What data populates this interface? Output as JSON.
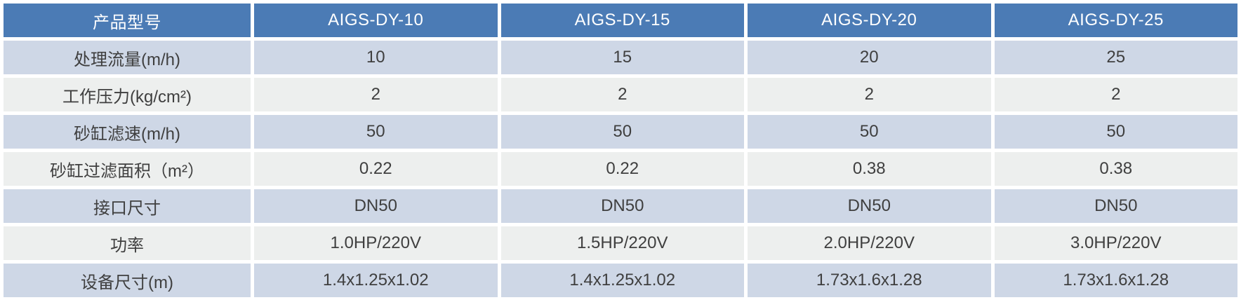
{
  "table": {
    "header": [
      "产品型号",
      "AIGS-DY-10",
      "AIGS-DY-15",
      "AIGS-DY-20",
      "AIGS-DY-25"
    ],
    "rows": [
      {
        "label": "处理流量(m/h)",
        "values": [
          "10",
          "15",
          "20",
          "25"
        ]
      },
      {
        "label": "工作压力(kg/cm²)",
        "values": [
          "2",
          "2",
          "2",
          "2"
        ]
      },
      {
        "label": "砂缸滤速(m/h)",
        "values": [
          "50",
          "50",
          "50",
          "50"
        ]
      },
      {
        "label": "砂缸过滤面积（m²）",
        "values": [
          "0.22",
          "0.22",
          "0.38",
          "0.38"
        ]
      },
      {
        "label": "接口尺寸",
        "values": [
          "DN50",
          "DN50",
          "DN50",
          "DN50"
        ]
      },
      {
        "label": "功率",
        "values": [
          "1.0HP/220V",
          "1.5HP/220V",
          "2.0HP/220V",
          "3.0HP/220V"
        ]
      },
      {
        "label": "设备尺寸(m)",
        "values": [
          "1.4x1.25x1.02",
          "1.4x1.25x1.02",
          "1.73x1.6x1.28",
          "1.73x1.6x1.28"
        ]
      }
    ],
    "colors": {
      "header_bg": "#4B7BB5",
      "header_text": "#FFFFFF",
      "band_blue": "#CED7E6",
      "band_gray": "#EDEFEE",
      "body_text": "#3F3F3F",
      "gridline": "#FFFFFF"
    }
  }
}
